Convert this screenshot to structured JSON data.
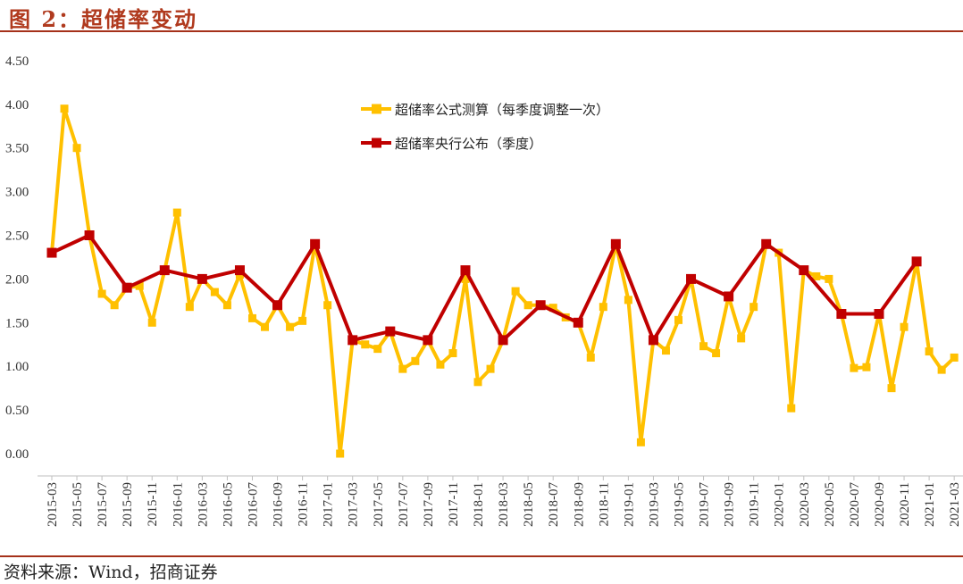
{
  "title": "图 2：超储率变动",
  "source": "资料来源：Wind，招商证券",
  "chart_data": {
    "type": "line",
    "title": "",
    "xlabel": "",
    "ylabel": "",
    "ylim": [
      0,
      4.5
    ],
    "y_ticks": [
      "0.00",
      "0.50",
      "1.00",
      "1.50",
      "2.00",
      "2.50",
      "3.00",
      "3.50",
      "4.00",
      "4.50"
    ],
    "x": [
      "2015-03",
      "2015-04",
      "2015-05",
      "2015-06",
      "2015-07",
      "2015-08",
      "2015-09",
      "2015-10",
      "2015-11",
      "2015-12",
      "2016-01",
      "2016-02",
      "2016-03",
      "2016-04",
      "2016-05",
      "2016-06",
      "2016-07",
      "2016-08",
      "2016-09",
      "2016-10",
      "2016-11",
      "2016-12",
      "2017-01",
      "2017-02",
      "2017-03",
      "2017-04",
      "2017-05",
      "2017-06",
      "2017-07",
      "2017-08",
      "2017-09",
      "2017-10",
      "2017-11",
      "2017-12",
      "2018-01",
      "2018-02",
      "2018-03",
      "2018-04",
      "2018-05",
      "2018-06",
      "2018-07",
      "2018-08",
      "2018-09",
      "2018-10",
      "2018-11",
      "2018-12",
      "2019-01",
      "2019-02",
      "2019-03",
      "2019-04",
      "2019-05",
      "2019-06",
      "2019-07",
      "2019-08",
      "2019-09",
      "2019-10",
      "2019-11",
      "2019-12",
      "2020-01",
      "2020-02",
      "2020-03",
      "2020-04",
      "2020-05",
      "2020-06",
      "2020-07",
      "2020-08",
      "2020-09",
      "2020-10",
      "2020-11",
      "2020-12",
      "2021-01",
      "2021-02",
      "2021-03"
    ],
    "x_tick_labels": [
      "2015-03",
      "2015-05",
      "2015-07",
      "2015-09",
      "2015-11",
      "2016-01",
      "2016-03",
      "2016-05",
      "2016-07",
      "2016-09",
      "2016-11",
      "2017-01",
      "2017-03",
      "2017-05",
      "2017-07",
      "2017-09",
      "2017-11",
      "2018-01",
      "2018-03",
      "2018-05",
      "2018-07",
      "2018-09",
      "2018-11",
      "2019-01",
      "2019-03",
      "2019-05",
      "2019-07",
      "2019-09",
      "2019-11",
      "2020-01",
      "2020-03",
      "2020-05",
      "2020-07",
      "2020-09",
      "2020-11",
      "2021-01",
      "2021-03"
    ],
    "grid": false,
    "legend_position": "top-center",
    "series": [
      {
        "name": "超储率公式测算（每季度调整一次）",
        "color": "#ffc000",
        "values": [
          2.3,
          3.95,
          3.5,
          2.5,
          1.83,
          1.7,
          1.9,
          1.92,
          1.5,
          2.1,
          2.76,
          1.68,
          2.0,
          1.85,
          1.7,
          2.05,
          1.55,
          1.45,
          1.7,
          1.45,
          1.52,
          2.4,
          1.7,
          0.0,
          1.3,
          1.25,
          1.2,
          1.4,
          0.97,
          1.06,
          1.3,
          1.02,
          1.15,
          2.0,
          0.82,
          0.97,
          1.3,
          1.86,
          1.7,
          1.7,
          1.67,
          1.56,
          1.5,
          1.1,
          1.68,
          2.4,
          1.76,
          0.13,
          1.3,
          1.18,
          1.53,
          2.0,
          1.23,
          1.15,
          1.8,
          1.32,
          1.68,
          2.4,
          2.3,
          0.52,
          2.1,
          2.03,
          2.0,
          1.6,
          0.98,
          0.99,
          1.6,
          0.75,
          1.45,
          2.2,
          1.17,
          0.96,
          1.1
        ]
      },
      {
        "name": "超储率央行公布（季度）",
        "color": "#c00000",
        "points": [
          {
            "x": "2015-03",
            "y": 2.3
          },
          {
            "x": "2015-06",
            "y": 2.5
          },
          {
            "x": "2015-09",
            "y": 1.9
          },
          {
            "x": "2015-12",
            "y": 2.1
          },
          {
            "x": "2016-03",
            "y": 2.0
          },
          {
            "x": "2016-06",
            "y": 2.1
          },
          {
            "x": "2016-09",
            "y": 1.7
          },
          {
            "x": "2016-12",
            "y": 2.4
          },
          {
            "x": "2017-03",
            "y": 1.3
          },
          {
            "x": "2017-06",
            "y": 1.4
          },
          {
            "x": "2017-09",
            "y": 1.3
          },
          {
            "x": "2017-12",
            "y": 2.1
          },
          {
            "x": "2018-03",
            "y": 1.3
          },
          {
            "x": "2018-06",
            "y": 1.7
          },
          {
            "x": "2018-09",
            "y": 1.5
          },
          {
            "x": "2018-12",
            "y": 2.4
          },
          {
            "x": "2019-03",
            "y": 1.3
          },
          {
            "x": "2019-06",
            "y": 2.0
          },
          {
            "x": "2019-09",
            "y": 1.8
          },
          {
            "x": "2019-12",
            "y": 2.4
          },
          {
            "x": "2020-03",
            "y": 2.1
          },
          {
            "x": "2020-06",
            "y": 1.6
          },
          {
            "x": "2020-09",
            "y": 1.6
          },
          {
            "x": "2020-12",
            "y": 2.2
          }
        ]
      }
    ]
  }
}
